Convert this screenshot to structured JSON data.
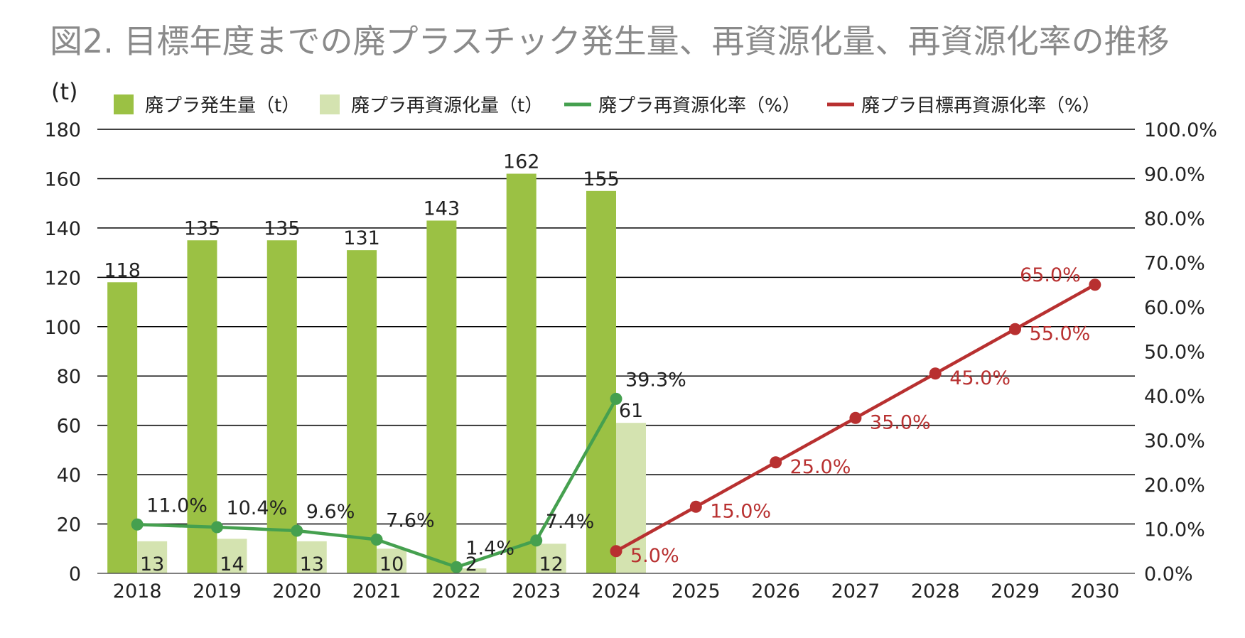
{
  "chart_data": {
    "type": "bar",
    "title": "図2. 目標年度までの廃プラスチック発生量、再資源化量、再資源化率の推移",
    "ylabel": "(t)",
    "categories": [
      "2018",
      "2019",
      "2020",
      "2021",
      "2022",
      "2023",
      "2024",
      "2025",
      "2026",
      "2027",
      "2028",
      "2029",
      "2030"
    ],
    "left_axis": {
      "min": 0,
      "max": 180,
      "step": 20,
      "ticks": [
        "0",
        "20",
        "40",
        "60",
        "80",
        "100",
        "120",
        "140",
        "160",
        "180"
      ]
    },
    "right_axis": {
      "min": 0,
      "max": 100,
      "step": 10,
      "ticks": [
        "0.0%",
        "10.0%",
        "20.0%",
        "30.0%",
        "40.0%",
        "50.0%",
        "60.0%",
        "70.0%",
        "80.0%",
        "90.0%",
        "100.0%"
      ]
    },
    "grid": true,
    "legend_position": "top",
    "series": [
      {
        "name": "廃プラ発生量（t）",
        "type": "bar",
        "axis": "left",
        "color": "#9bc144",
        "values": [
          118,
          135,
          135,
          131,
          143,
          162,
          155,
          null,
          null,
          null,
          null,
          null,
          null
        ],
        "labels": [
          "118",
          "135",
          "135",
          "131",
          "143",
          "162",
          "155",
          "",
          "",
          "",
          "",
          "",
          ""
        ]
      },
      {
        "name": "廃プラ再資源化量（t）",
        "type": "bar",
        "axis": "left",
        "color": "#d4e3b0",
        "values": [
          13,
          14,
          13,
          10,
          2,
          12,
          61,
          null,
          null,
          null,
          null,
          null,
          null
        ],
        "labels": [
          "13",
          "14",
          "13",
          "10",
          "2",
          "12",
          "61",
          "",
          "",
          "",
          "",
          "",
          ""
        ]
      },
      {
        "name": "廃プラ再資源化率（%）",
        "type": "line",
        "axis": "right",
        "color": "#45a04f",
        "values": [
          11.0,
          10.4,
          9.6,
          7.6,
          1.4,
          7.4,
          39.3,
          null,
          null,
          null,
          null,
          null,
          null
        ],
        "labels": [
          "11.0%",
          "10.4%",
          "9.6%",
          "7.6%",
          "1.4%",
          "7.4%",
          "39.3%",
          "",
          "",
          "",
          "",
          "",
          ""
        ]
      },
      {
        "name": "廃プラ目標再資源化率（%）",
        "type": "line",
        "axis": "right",
        "color": "#b83030",
        "values": [
          null,
          null,
          null,
          null,
          null,
          null,
          5.0,
          15.0,
          25.0,
          35.0,
          45.0,
          55.0,
          65.0
        ],
        "labels": [
          "",
          "",
          "",
          "",
          "",
          "",
          "5.0%",
          "15.0%",
          "25.0%",
          "35.0%",
          "45.0%",
          "55.0%",
          "65.0%"
        ]
      }
    ]
  }
}
